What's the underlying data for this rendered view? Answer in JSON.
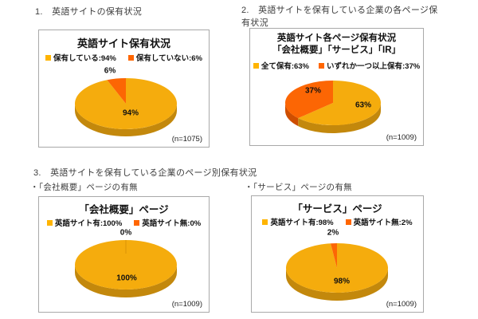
{
  "page": {
    "heading1": "1.　英語サイトの保有状況",
    "heading2": "2.　英語サイトを保有している企業の各ページ保有状況",
    "heading3": "3.　英語サイトを保有している企業のページ別保有状況",
    "bullet_company": "・「会社概要」ページの有無",
    "bullet_service": "・「サービス」ページの有無"
  },
  "chart_data": [
    {
      "type": "pie",
      "title": "英語サイト保有状況",
      "title_line2": "",
      "labels": [
        "保有している",
        "保有していない"
      ],
      "values": [
        94,
        6
      ],
      "slice_labels": [
        "94%",
        "6%"
      ],
      "legend": [
        {
          "label": "保有している:94%",
          "color": "#FFB400"
        },
        {
          "label": "保有していない:6%",
          "color": "#FF6600"
        }
      ],
      "colors": [
        "#F5AC0D",
        "#FC6604"
      ],
      "side_colors": [
        "#C3880C",
        "#CE4E00"
      ],
      "sample": "(n=1075)",
      "legend_position": "top"
    },
    {
      "type": "pie",
      "title": "英語サイト各ページ保有状況",
      "title_line2": "「会社概要」「サービス」「IR」",
      "labels": [
        "全て保有",
        "いずれか一つ以上保有"
      ],
      "values": [
        63,
        37
      ],
      "slice_labels": [
        "63%",
        "37%"
      ],
      "legend": [
        {
          "label": "全て保有:63%",
          "color": "#FFB400"
        },
        {
          "label": "いずれか一つ以上保有:37%",
          "color": "#FF6600"
        }
      ],
      "colors": [
        "#F5AC0D",
        "#FC6604"
      ],
      "side_colors": [
        "#C3880C",
        "#CE4E00"
      ],
      "sample": "(n=1009)",
      "legend_position": "top"
    },
    {
      "type": "pie",
      "title": "「会社概要」ページ",
      "title_line2": "",
      "labels": [
        "英語サイト有",
        "英語サイト無"
      ],
      "values": [
        100,
        0
      ],
      "slice_labels": [
        "100%",
        "0%"
      ],
      "legend": [
        {
          "label": "英語サイト有:100%",
          "color": "#FFB400"
        },
        {
          "label": "英語サイト無:0%",
          "color": "#FF6600"
        }
      ],
      "colors": [
        "#F5AC0D",
        "#FC6604"
      ],
      "side_colors": [
        "#C3880C",
        "#CE4E00"
      ],
      "sample": "(n=1009)",
      "legend_position": "top"
    },
    {
      "type": "pie",
      "title": "「サービス」ページ",
      "title_line2": "",
      "labels": [
        "英語サイト有",
        "英語サイト無"
      ],
      "values": [
        98,
        2
      ],
      "slice_labels": [
        "98%",
        "2%"
      ],
      "legend": [
        {
          "label": "英語サイト有:98%",
          "color": "#FFB400"
        },
        {
          "label": "英語サイト無:2%",
          "color": "#FF6600"
        }
      ],
      "colors": [
        "#F5AC0D",
        "#FC6604"
      ],
      "side_colors": [
        "#C3880C",
        "#CE4E00"
      ],
      "sample": "(n=1009)",
      "legend_position": "top"
    }
  ]
}
